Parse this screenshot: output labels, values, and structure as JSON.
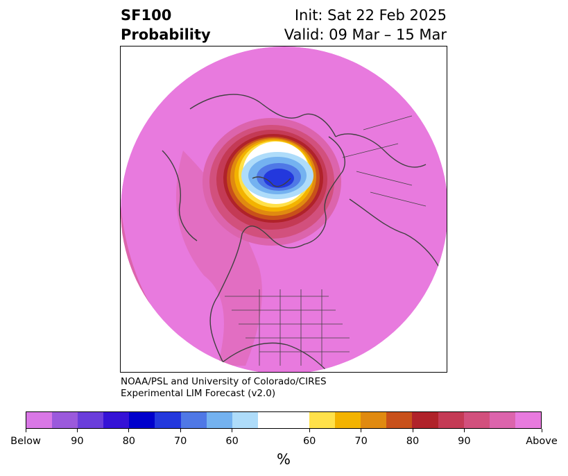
{
  "title": {
    "left_line1": "SF100",
    "left_line2": "Probability",
    "right_line1": "Init: Sat 22 Feb 2025",
    "right_line2": "Valid: 09 Mar – 15 Mar"
  },
  "credit": {
    "line1": "NOAA/PSL and University of Colorado/CIRES",
    "line2": "Experimental LIM Forecast (v2.0)"
  },
  "colorbar": {
    "unit": "%",
    "colors": [
      "#d977e6",
      "#9b59dc",
      "#6a3ddb",
      "#3512d6",
      "#0000cc",
      "#2338dd",
      "#4f78e6",
      "#74b2f0",
      "#aedcfa",
      "#ffffff",
      "#ffe14a",
      "#f3b300",
      "#e08a10",
      "#c8501a",
      "#b0222a",
      "#c43a55",
      "#d2507d",
      "#dc64ac",
      "#e87ade"
    ],
    "tick_labels": [
      "Below",
      "90",
      "80",
      "70",
      "60",
      "60",
      "70",
      "80",
      "90",
      "Above"
    ]
  },
  "map": {
    "projection": "north-polar-stereographic",
    "fill_color": "#e87ade",
    "features": [
      "coastlines",
      "country-borders",
      "state-borders"
    ]
  }
}
